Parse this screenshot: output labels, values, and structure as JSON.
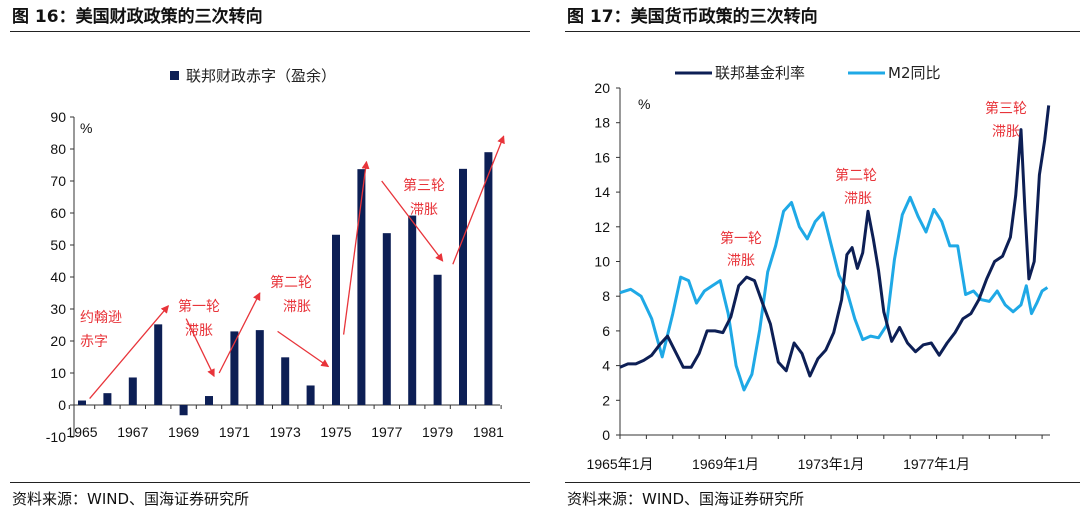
{
  "left_figure": {
    "title": "图 16：美国财政政策的三次转向",
    "source": "资料来源：WIND、国海证券研究所",
    "legend": "联邦财政赤字（盈余）",
    "unit": "%",
    "annotations": [
      "约翰逊",
      "赤字",
      "第一轮",
      "滞胀",
      "第二轮",
      "滞胀",
      "第三轮",
      "滞胀"
    ]
  },
  "right_figure": {
    "title": "图 17：美国货币政策的三次转向",
    "source": "资料来源：WIND、国海证券研究所",
    "unit": "%",
    "annotations": [
      "第一轮",
      "滞胀",
      "第二轮",
      "滞胀",
      "第三轮",
      "滞胀"
    ]
  },
  "chart_data": [
    {
      "type": "bar",
      "title": "联邦财政赤字（盈余）",
      "ylabel": "%",
      "ylim": [
        -10,
        90
      ],
      "yticks": [
        -10,
        0,
        10,
        20,
        30,
        40,
        50,
        60,
        70,
        80,
        90
      ],
      "xtick_labels": [
        "1965",
        "1967",
        "1969",
        "1971",
        "1973",
        "1975",
        "1977",
        "1979",
        "1981"
      ],
      "categories": [
        "1965",
        "1966",
        "1967",
        "1968",
        "1969",
        "1970",
        "1971",
        "1972",
        "1973",
        "1974",
        "1975",
        "1976",
        "1977",
        "1978",
        "1979",
        "1980",
        "1981"
      ],
      "series": [
        {
          "name": "联邦财政赤字（盈余）",
          "color": "#0d1f55",
          "values": [
            1.4,
            3.7,
            8.6,
            25.2,
            -3.2,
            2.8,
            23.0,
            23.4,
            14.9,
            6.1,
            53.2,
            73.7,
            53.7,
            59.2,
            40.7,
            73.8,
            79.0
          ]
        }
      ],
      "arrows_color": "#e8343a"
    },
    {
      "type": "line",
      "ylabel": "%",
      "ylim": [
        0,
        20
      ],
      "yticks": [
        0,
        2,
        4,
        6,
        8,
        10,
        12,
        14,
        16,
        18,
        20
      ],
      "xlim": [
        1965.0,
        1981.3
      ],
      "xtick_labels": [
        "1965年1月",
        "1969年1月",
        "1973年1月",
        "1977年1月"
      ],
      "xtick_values": [
        1965,
        1969,
        1973,
        1977
      ],
      "series": [
        {
          "name": "联邦基金利率",
          "color": "#0d1f55",
          "x": [
            1965.0,
            1965.3,
            1965.6,
            1965.9,
            1966.2,
            1966.5,
            1966.8,
            1967.1,
            1967.4,
            1967.7,
            1968.0,
            1968.3,
            1968.6,
            1968.9,
            1969.2,
            1969.5,
            1969.8,
            1970.1,
            1970.4,
            1970.7,
            1971.0,
            1971.3,
            1971.6,
            1971.9,
            1972.2,
            1972.5,
            1972.8,
            1973.1,
            1973.4,
            1973.6,
            1973.8,
            1974.0,
            1974.2,
            1974.4,
            1974.6,
            1974.8,
            1975.0,
            1975.3,
            1975.6,
            1975.9,
            1976.2,
            1976.5,
            1976.8,
            1977.1,
            1977.4,
            1977.7,
            1978.0,
            1978.3,
            1978.6,
            1978.9,
            1979.2,
            1979.5,
            1979.8,
            1980.0,
            1980.2,
            1980.35,
            1980.5,
            1980.7,
            1980.9,
            1981.1,
            1981.25
          ],
          "y": [
            3.9,
            4.1,
            4.1,
            4.3,
            4.6,
            5.2,
            5.7,
            4.8,
            3.9,
            3.9,
            4.7,
            6.0,
            6.0,
            5.9,
            6.8,
            8.6,
            9.1,
            8.9,
            7.6,
            6.4,
            4.2,
            3.7,
            5.3,
            4.7,
            3.4,
            4.4,
            4.9,
            5.9,
            7.8,
            10.4,
            10.8,
            9.6,
            10.5,
            12.9,
            11.3,
            9.5,
            7.1,
            5.4,
            6.2,
            5.3,
            4.8,
            5.2,
            5.3,
            4.6,
            5.3,
            5.9,
            6.7,
            7.0,
            7.8,
            9.0,
            10.0,
            10.3,
            11.4,
            13.8,
            17.6,
            13.0,
            9.0,
            10.0,
            15.0,
            17.0,
            19.0
          ]
        },
        {
          "name": "M2同比",
          "color": "#1fa9e6",
          "x": [
            1965.0,
            1965.4,
            1965.8,
            1966.2,
            1966.6,
            1967.0,
            1967.3,
            1967.6,
            1967.9,
            1968.2,
            1968.5,
            1968.8,
            1969.1,
            1969.4,
            1969.7,
            1970.0,
            1970.3,
            1970.6,
            1970.9,
            1971.2,
            1971.5,
            1971.8,
            1972.1,
            1972.4,
            1972.7,
            1973.0,
            1973.3,
            1973.6,
            1973.9,
            1974.2,
            1974.5,
            1974.8,
            1975.1,
            1975.4,
            1975.7,
            1976.0,
            1976.3,
            1976.6,
            1976.9,
            1977.2,
            1977.5,
            1977.8,
            1978.1,
            1978.4,
            1978.7,
            1979.0,
            1979.3,
            1979.6,
            1979.9,
            1980.2,
            1980.4,
            1980.6,
            1980.8,
            1981.0,
            1981.2
          ],
          "y": [
            8.2,
            8.4,
            8.0,
            6.7,
            4.5,
            7.0,
            9.1,
            8.9,
            7.6,
            8.3,
            8.6,
            8.9,
            7.0,
            4.0,
            2.6,
            3.5,
            6.1,
            9.4,
            10.9,
            12.9,
            13.4,
            12.0,
            11.3,
            12.3,
            12.8,
            11.0,
            9.2,
            8.3,
            6.7,
            5.5,
            5.7,
            5.6,
            6.3,
            10.1,
            12.7,
            13.7,
            12.6,
            11.7,
            13.0,
            12.3,
            10.9,
            10.9,
            8.1,
            8.3,
            7.8,
            7.7,
            8.3,
            7.5,
            7.1,
            7.5,
            8.6,
            7.0,
            7.6,
            8.3,
            8.5
          ]
        }
      ]
    }
  ]
}
